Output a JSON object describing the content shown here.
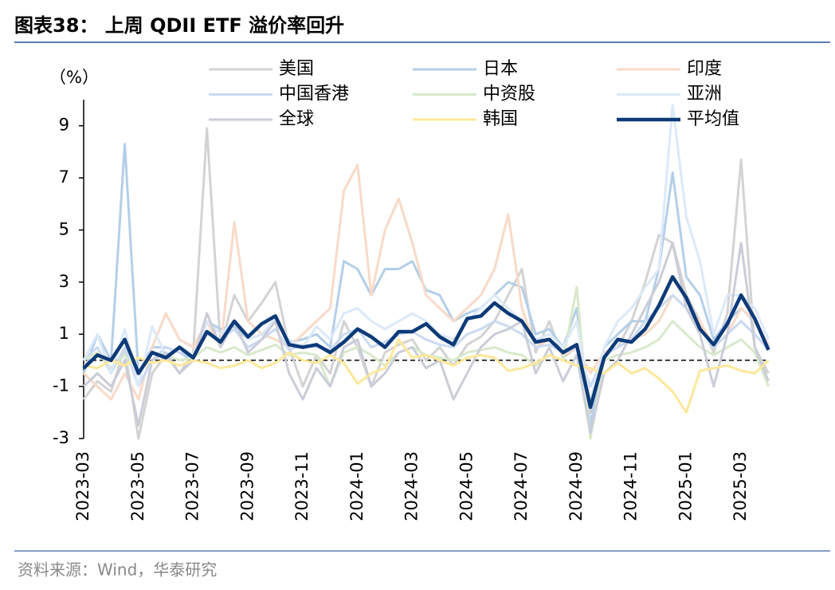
{
  "title": "图表38：  上周 QDII ETF 溢价率回升",
  "source": "资料来源：Wind，华泰研究",
  "chart_data": {
    "type": "line",
    "y_unit": "（%）",
    "categories": [
      "2023-03",
      null,
      null,
      null,
      "2023-05",
      null,
      null,
      null,
      "2023-07",
      null,
      null,
      null,
      "2023-09",
      null,
      null,
      null,
      "2023-11",
      null,
      null,
      null,
      "2024-01",
      null,
      null,
      null,
      "2024-03",
      null,
      null,
      null,
      "2024-05",
      null,
      null,
      null,
      "2024-07",
      null,
      null,
      null,
      "2024-09",
      null,
      null,
      null,
      "2024-11",
      null,
      null,
      null,
      "2025-01",
      null,
      null,
      null,
      "2025-03",
      null,
      null
    ],
    "ylim": [
      -3,
      10
    ],
    "yticks": [
      -3,
      -1,
      1,
      3,
      5,
      7,
      9
    ],
    "zero_line": true,
    "legend": "top",
    "series": [
      {
        "name": "美国",
        "color": "#d3d3d3",
        "values": [
          -1.5,
          -0.8,
          -1.2,
          0.5,
          -3,
          -0.5,
          0.2,
          -0.5,
          0.3,
          8.9,
          0.5,
          2.5,
          1.5,
          2.2,
          3,
          0.5,
          -1,
          0.2,
          -0.5,
          1.5,
          0.5,
          -1,
          0.3,
          0.6,
          0.8,
          0,
          0.5,
          -0.2,
          0.6,
          0.9,
          1.5,
          2.5,
          3.5,
          0.3,
          1.5,
          0.1,
          0.5,
          -2,
          0.2,
          0.5,
          1.5,
          3,
          4.8,
          4.5,
          2.5,
          1.5,
          0.3,
          1.8,
          7.7,
          0.5,
          -0.5
        ]
      },
      {
        "name": "日本",
        "color": "#b4cfe8",
        "values": [
          -0.5,
          1,
          0,
          8.3,
          -0.5,
          0.5,
          0.5,
          0.3,
          0,
          1.5,
          1.2,
          1.3,
          0.8,
          1,
          1.5,
          0.7,
          0.8,
          1,
          0.5,
          3.8,
          3.5,
          2.5,
          3.5,
          3.5,
          3.8,
          2.7,
          2.5,
          1.5,
          1.8,
          2,
          2.5,
          3,
          2.8,
          1,
          1.2,
          0.5,
          2,
          -2.5,
          0.5,
          1,
          1.5,
          1.5,
          3.5,
          7.2,
          3.2,
          2.5,
          0.8,
          1.5,
          2,
          1.5,
          0.5
        ]
      },
      {
        "name": "印度",
        "color": "#f8dac8",
        "values": [
          -0.5,
          -1,
          -1.5,
          -0.5,
          -1.5,
          0.5,
          1.8,
          0.8,
          0.5,
          1.5,
          0.5,
          5.3,
          1.5,
          1,
          0.8,
          0.5,
          1,
          1.5,
          2,
          6.5,
          7.5,
          2.5,
          5,
          6.2,
          4.5,
          2.5,
          2,
          1.5,
          2,
          2.5,
          3.5,
          5.6,
          2,
          0.5,
          0.8,
          0.2,
          0.5,
          -0.5,
          0.3,
          0.5,
          0.8,
          1,
          1.5,
          2.5,
          2,
          1.5,
          0.5,
          1,
          2,
          1.5,
          0.6
        ]
      },
      {
        "name": "中国香港",
        "color": "#cbdaf2",
        "values": [
          0,
          0.5,
          -0.5,
          0.5,
          -1,
          0,
          0.5,
          0.3,
          0.2,
          1,
          0.8,
          1.2,
          0.5,
          0.8,
          1.2,
          0.4,
          0.6,
          0.5,
          0.4,
          1,
          1.2,
          0.5,
          0.7,
          1,
          1.1,
          0.8,
          0.6,
          0.5,
          1,
          1.2,
          1.5,
          1.3,
          1,
          0.5,
          0.6,
          0.3,
          0.5,
          -1,
          0.2,
          0.5,
          0.8,
          1.5,
          2,
          2.5,
          2,
          1.2,
          0.5,
          1,
          1.5,
          1,
          0.4
        ]
      },
      {
        "name": "中资股",
        "color": "#d8e9cb",
        "values": [
          0,
          0.3,
          -0.3,
          0.2,
          -0.5,
          0.3,
          0.2,
          0,
          0.1,
          0.5,
          0.3,
          0.5,
          0.2,
          0.4,
          0.6,
          0.2,
          0.3,
          0.2,
          -1,
          0.3,
          0.5,
          0.2,
          -0.2,
          0.3,
          0.5,
          0.2,
          0.1,
          0,
          0.3,
          0.4,
          0.5,
          0.3,
          0.2,
          -0.2,
          0.2,
          0,
          2.8,
          -3,
          0,
          0.2,
          0.3,
          0.5,
          0.8,
          1.5,
          1,
          0.5,
          0.2,
          0.5,
          0.8,
          0.3,
          -1
        ]
      },
      {
        "name": "亚洲",
        "color": "#dce9f8",
        "values": [
          0,
          1,
          -0.5,
          1.2,
          -1,
          1.3,
          0.2,
          0.5,
          0.2,
          1.5,
          1,
          1.5,
          0.8,
          1,
          1.6,
          0.8,
          0.5,
          1.3,
          0.8,
          1.8,
          2,
          1.5,
          1.2,
          1.5,
          1.8,
          1.5,
          1,
          0.8,
          1.5,
          2,
          2.5,
          2,
          1.5,
          0.8,
          1,
          0.5,
          1.5,
          -1.5,
          0.5,
          1.5,
          2,
          2.8,
          3.5,
          9.8,
          5.5,
          3.8,
          1,
          2.5,
          2.5,
          2,
          0.8
        ]
      },
      {
        "name": "全球",
        "color": "#cacdd8",
        "values": [
          -1,
          -0.5,
          -1,
          0,
          -2.5,
          0,
          0.3,
          -0.5,
          0,
          1.8,
          0.5,
          1.5,
          0.3,
          0.8,
          1.5,
          -0.5,
          -1.5,
          -0.3,
          -1,
          0.5,
          0.8,
          -1,
          -0.5,
          0.3,
          0.5,
          -0.3,
          0,
          -1.5,
          -0.5,
          0.5,
          1,
          1.2,
          1.5,
          -0.5,
          0.5,
          -0.8,
          0.2,
          -2.8,
          -0.5,
          0,
          1,
          2,
          3,
          4.5,
          2,
          1,
          -1,
          1,
          4.5,
          0.5,
          -0.8
        ]
      },
      {
        "name": "韩国",
        "color": "#fde89a",
        "values": [
          -0.2,
          -0.3,
          0,
          -0.2,
          0.1,
          -0.1,
          0,
          -0.2,
          0,
          -0.1,
          -0.3,
          -0.2,
          0,
          -0.3,
          -0.1,
          0.3,
          0,
          -0.1,
          0.2,
          -0.1,
          -0.9,
          -0.5,
          -0.3,
          0.8,
          0.1,
          0.2,
          0,
          -0.2,
          0.1,
          0.2,
          0.1,
          -0.4,
          -0.3,
          -0.1,
          0.2,
          0,
          -0.2,
          -0.3,
          -0.5,
          -0.1,
          -0.5,
          -0.3,
          -0.7,
          -1.2,
          -2,
          -0.4,
          -0.3,
          -0.2,
          -0.4,
          -0.5,
          0
        ]
      },
      {
        "name": "平均值",
        "color": "#0d3a78",
        "values": [
          -0.3,
          0.2,
          0,
          0.8,
          -0.5,
          0.3,
          0.1,
          0.5,
          0.1,
          1.1,
          0.7,
          1.5,
          0.9,
          1.4,
          1.7,
          0.6,
          0.5,
          0.6,
          0.3,
          0.7,
          1.2,
          0.9,
          0.5,
          1.1,
          1.1,
          1.4,
          0.9,
          0.6,
          1.6,
          1.7,
          2.2,
          1.8,
          1.5,
          0.7,
          0.8,
          0.3,
          0.6,
          -1.8,
          0.1,
          0.8,
          0.7,
          1.2,
          2.1,
          3.2,
          2.4,
          1.2,
          0.6,
          1.4,
          2.5,
          1.6,
          0.4
        ]
      }
    ]
  }
}
